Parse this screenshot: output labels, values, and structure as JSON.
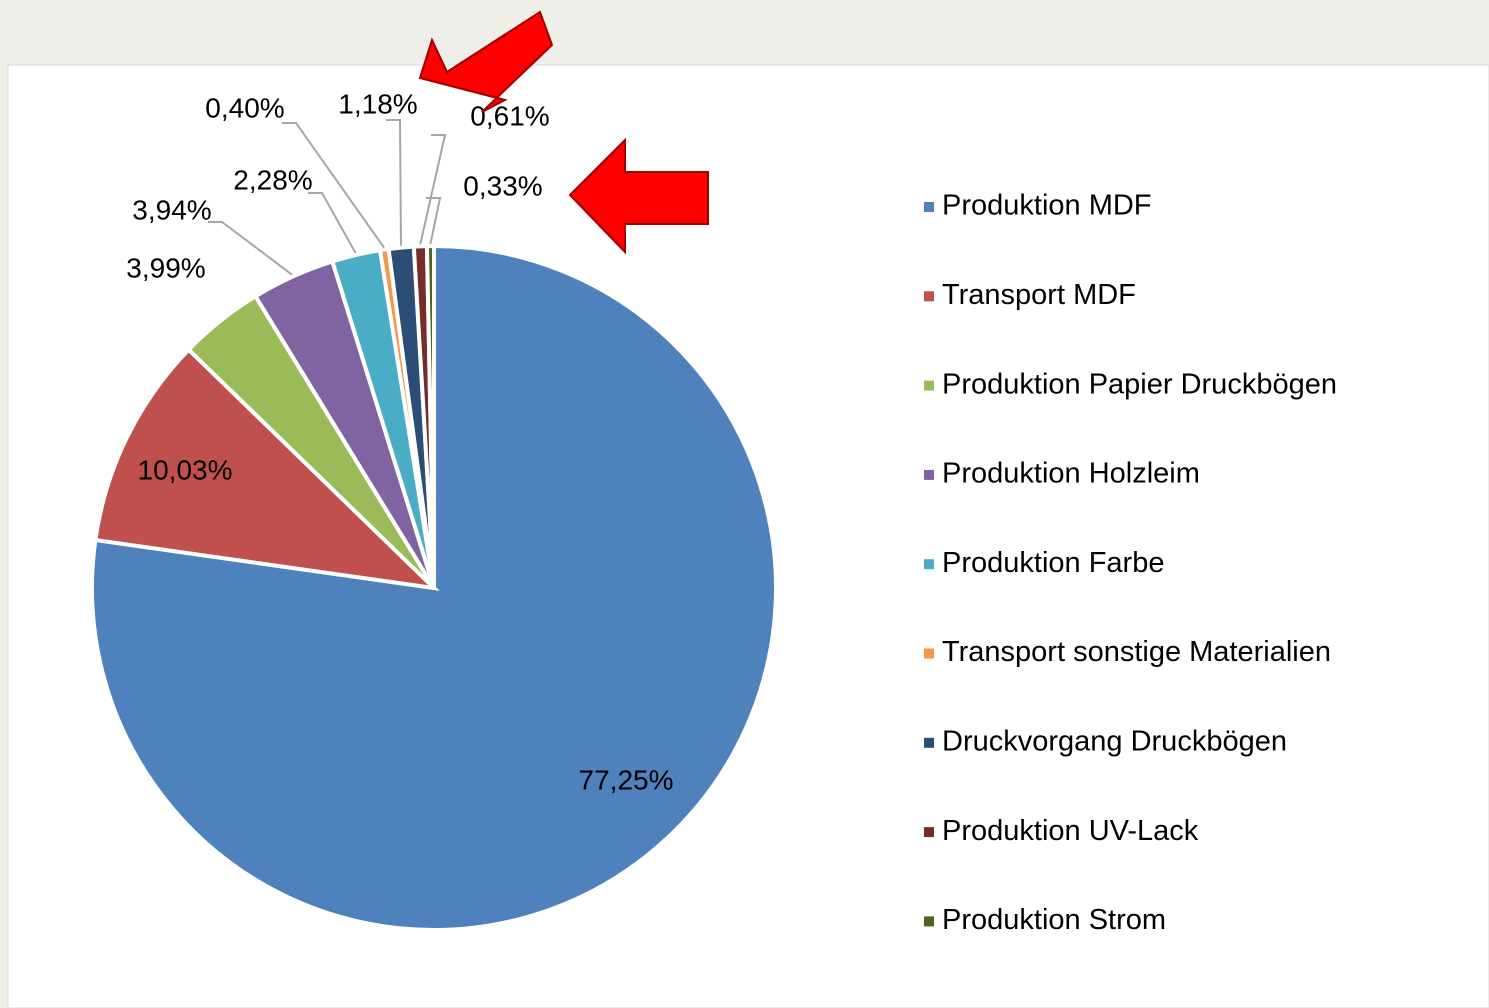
{
  "chart_data": {
    "type": "pie",
    "categories": [
      "Produktion MDF",
      "Transport MDF",
      "Produktion Papier Druckbögen",
      "Produktion Holzleim",
      "Produktion Farbe",
      "Transport sonstige Materialien",
      "Druckvorgang Druckbögen",
      "Produktion UV-Lack",
      "Produktion Strom"
    ],
    "values": [
      77.25,
      10.03,
      3.99,
      3.94,
      2.28,
      0.4,
      1.18,
      0.61,
      0.33
    ],
    "value_labels": [
      "77,25%",
      "10,03%",
      "3,99%",
      "3,94%",
      "2,28%",
      "0,40%",
      "1,18%",
      "0,61%",
      "0,33%"
    ],
    "colors": [
      "#4f81bd",
      "#c0504d",
      "#9bbb59",
      "#8064a2",
      "#4bacc6",
      "#f79646",
      "#2c4d75",
      "#772c2a",
      "#4f6228"
    ],
    "legend": "right"
  }
}
